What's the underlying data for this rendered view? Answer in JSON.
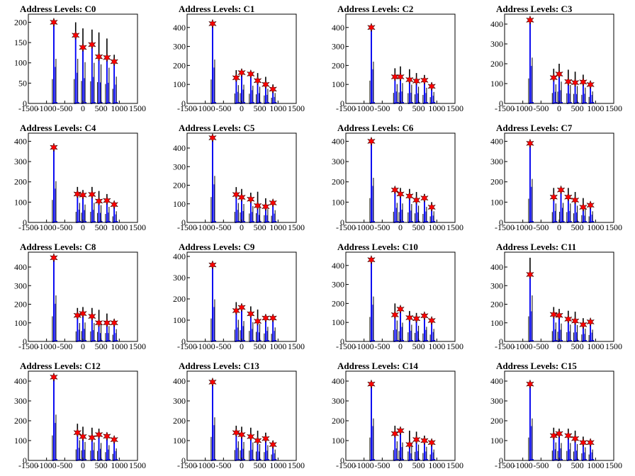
{
  "colors": {
    "hist_dark": "#000000",
    "hist_blue": "#0000ff",
    "peak_marker": "#ff0000",
    "frame": "#000000"
  },
  "chart_data": [
    {
      "title": "Address Levels: C0",
      "type": "bar",
      "xlim": [
        -1500,
        1500
      ],
      "xticks": [
        -1500,
        -1000,
        -500,
        0,
        500,
        1000,
        1500
      ],
      "ylim": [
        0,
        220
      ],
      "yticks": [
        0,
        50,
        100,
        150,
        200
      ],
      "peaks": {
        "x": [
          -800,
          -200,
          0,
          250,
          440,
          660,
          860
        ],
        "y": [
          200,
          168,
          138,
          145,
          115,
          113,
          103
        ]
      },
      "bar_tops": {
        "x": [
          -800,
          -200,
          0,
          250,
          440,
          660,
          860
        ],
        "dark": [
          200,
          200,
          185,
          182,
          175,
          160,
          120
        ],
        "blue": [
          200,
          168,
          138,
          145,
          115,
          113,
          103
        ]
      }
    },
    {
      "title": "Address Levels: C1",
      "type": "bar",
      "xlim": [
        -1500,
        1500
      ],
      "xticks": [
        -1500,
        -1000,
        -500,
        0,
        500,
        1000,
        1500
      ],
      "ylim": [
        0,
        470
      ],
      "yticks": [
        0,
        100,
        200,
        300,
        400
      ],
      "peaks": {
        "x": [
          -800,
          -150,
          0,
          250,
          440,
          660,
          860
        ],
        "y": [
          420,
          135,
          162,
          155,
          120,
          100,
          75
        ]
      },
      "bar_tops": {
        "x": [
          -800,
          -150,
          0,
          250,
          440,
          660,
          860
        ],
        "dark": [
          420,
          175,
          180,
          170,
          160,
          140,
          100
        ],
        "blue": [
          420,
          135,
          162,
          155,
          120,
          100,
          75
        ]
      }
    },
    {
      "title": "Address Levels: C2",
      "type": "bar",
      "xlim": [
        -1500,
        1500
      ],
      "xticks": [
        -1500,
        -1000,
        -500,
        0,
        500,
        1000,
        1500
      ],
      "ylim": [
        0,
        470
      ],
      "yticks": [
        0,
        100,
        200,
        300,
        400
      ],
      "peaks": {
        "x": [
          -800,
          -150,
          0,
          250,
          440,
          660,
          860
        ],
        "y": [
          400,
          140,
          140,
          125,
          118,
          122,
          90
        ]
      },
      "bar_tops": {
        "x": [
          -800,
          -150,
          0,
          250,
          440,
          660,
          860
        ],
        "dark": [
          400,
          185,
          195,
          180,
          160,
          150,
          110
        ],
        "blue": [
          400,
          140,
          140,
          125,
          118,
          122,
          90
        ]
      }
    },
    {
      "title": "Address Levels: C3",
      "type": "bar",
      "xlim": [
        -1500,
        1500
      ],
      "xticks": [
        -1500,
        -1000,
        -500,
        0,
        500,
        1000,
        1500
      ],
      "ylim": [
        0,
        450
      ],
      "yticks": [
        0,
        100,
        200,
        300,
        400
      ],
      "peaks": {
        "x": [
          -800,
          -150,
          0,
          250,
          440,
          660,
          860
        ],
        "y": [
          420,
          130,
          148,
          110,
          105,
          108,
          95
        ]
      },
      "bar_tops": {
        "x": [
          -800,
          -150,
          0,
          250,
          440,
          660,
          860
        ],
        "dark": [
          420,
          175,
          200,
          170,
          160,
          145,
          110
        ],
        "blue": [
          420,
          130,
          148,
          110,
          105,
          108,
          95
        ]
      }
    },
    {
      "title": "Address Levels: C4",
      "type": "bar",
      "xlim": [
        -1500,
        1500
      ],
      "xticks": [
        -1500,
        -1000,
        -500,
        0,
        500,
        1000,
        1500
      ],
      "ylim": [
        0,
        440
      ],
      "yticks": [
        0,
        100,
        200,
        300,
        400
      ],
      "peaks": {
        "x": [
          -800,
          -150,
          0,
          250,
          440,
          660,
          860
        ],
        "y": [
          370,
          140,
          135,
          138,
          105,
          108,
          88
        ]
      },
      "bar_tops": {
        "x": [
          -800,
          -150,
          0,
          250,
          440,
          660,
          860
        ],
        "dark": [
          370,
          175,
          160,
          175,
          155,
          140,
          100
        ],
        "blue": [
          370,
          140,
          135,
          138,
          105,
          108,
          88
        ]
      }
    },
    {
      "title": "Address Levels: C5",
      "type": "bar",
      "xlim": [
        -1500,
        1500
      ],
      "xticks": [
        -1500,
        -1000,
        -500,
        0,
        500,
        1000,
        1500
      ],
      "ylim": [
        0,
        480
      ],
      "yticks": [
        0,
        100,
        200,
        300,
        400
      ],
      "peaks": {
        "x": [
          -800,
          -150,
          0,
          250,
          440,
          660,
          860
        ],
        "y": [
          455,
          150,
          135,
          125,
          90,
          85,
          105
        ]
      },
      "bar_tops": {
        "x": [
          -800,
          -150,
          0,
          250,
          440,
          660,
          860
        ],
        "dark": [
          455,
          190,
          180,
          160,
          165,
          130,
          120
        ],
        "blue": [
          455,
          150,
          135,
          125,
          90,
          85,
          105
        ]
      }
    },
    {
      "title": "Address Levels: C6",
      "type": "bar",
      "xlim": [
        -1500,
        1500
      ],
      "xticks": [
        -1500,
        -1000,
        -500,
        0,
        500,
        1000,
        1500
      ],
      "ylim": [
        0,
        440
      ],
      "yticks": [
        0,
        100,
        200,
        300,
        400
      ],
      "peaks": {
        "x": [
          -800,
          -150,
          0,
          250,
          440,
          660,
          860
        ],
        "y": [
          400,
          160,
          140,
          130,
          110,
          120,
          75
        ]
      },
      "bar_tops": {
        "x": [
          -800,
          -150,
          0,
          250,
          440,
          660,
          860
        ],
        "dark": [
          400,
          175,
          170,
          165,
          150,
          140,
          100
        ],
        "blue": [
          400,
          160,
          140,
          130,
          110,
          120,
          75
        ]
      }
    },
    {
      "title": "Address Levels: C7",
      "type": "bar",
      "xlim": [
        -1500,
        1500
      ],
      "xticks": [
        -1500,
        -1000,
        -500,
        0,
        500,
        1000,
        1500
      ],
      "ylim": [
        0,
        440
      ],
      "yticks": [
        0,
        100,
        200,
        300,
        400
      ],
      "peaks": {
        "x": [
          -800,
          -150,
          50,
          250,
          440,
          660,
          860
        ],
        "y": [
          390,
          125,
          160,
          125,
          110,
          75,
          85
        ]
      },
      "bar_tops": {
        "x": [
          -800,
          -150,
          50,
          250,
          440,
          660,
          860
        ],
        "dark": [
          390,
          170,
          175,
          170,
          150,
          120,
          100
        ],
        "blue": [
          390,
          125,
          160,
          125,
          110,
          75,
          85
        ]
      }
    },
    {
      "title": "Address Levels: C8",
      "type": "bar",
      "xlim": [
        -1500,
        1500
      ],
      "xticks": [
        -1500,
        -1000,
        -500,
        0,
        500,
        1000,
        1500
      ],
      "ylim": [
        0,
        480
      ],
      "yticks": [
        0,
        100,
        200,
        300,
        400
      ],
      "peaks": {
        "x": [
          -800,
          -150,
          0,
          250,
          440,
          660,
          860
        ],
        "y": [
          450,
          140,
          150,
          135,
          100,
          100,
          100
        ]
      },
      "bar_tops": {
        "x": [
          -800,
          -150,
          0,
          250,
          440,
          660,
          860
        ],
        "dark": [
          450,
          180,
          185,
          180,
          170,
          150,
          120
        ],
        "blue": [
          450,
          140,
          150,
          135,
          100,
          100,
          100
        ]
      }
    },
    {
      "title": "Address Levels: C9",
      "type": "bar",
      "xlim": [
        -1500,
        1500
      ],
      "xticks": [
        -1500,
        -1000,
        -500,
        0,
        500,
        1000,
        1500
      ],
      "ylim": [
        0,
        420
      ],
      "yticks": [
        0,
        100,
        200,
        300,
        400
      ],
      "peaks": {
        "x": [
          -800,
          -150,
          0,
          250,
          440,
          660,
          860
        ],
        "y": [
          360,
          145,
          160,
          130,
          95,
          110,
          110
        ]
      },
      "bar_tops": {
        "x": [
          -800,
          -150,
          0,
          250,
          440,
          660,
          860
        ],
        "dark": [
          360,
          185,
          175,
          165,
          150,
          125,
          120
        ],
        "blue": [
          360,
          145,
          160,
          130,
          95,
          110,
          110
        ]
      }
    },
    {
      "title": "Address Levels: C10",
      "type": "bar",
      "xlim": [
        -1500,
        1500
      ],
      "xticks": [
        -1500,
        -1000,
        -500,
        0,
        500,
        1000,
        1500
      ],
      "ylim": [
        0,
        470
      ],
      "yticks": [
        0,
        100,
        200,
        300,
        400
      ],
      "peaks": {
        "x": [
          -800,
          -150,
          0,
          250,
          440,
          660,
          860
        ],
        "y": [
          430,
          140,
          170,
          125,
          120,
          135,
          110
        ]
      },
      "bar_tops": {
        "x": [
          -800,
          -150,
          0,
          250,
          440,
          660,
          860
        ],
        "dark": [
          430,
          200,
          180,
          160,
          150,
          140,
          120
        ],
        "blue": [
          430,
          140,
          170,
          125,
          120,
          135,
          110
        ]
      }
    },
    {
      "title": "Address Levels: C11",
      "type": "bar",
      "xlim": [
        -1500,
        1500
      ],
      "xticks": [
        -1500,
        -1000,
        -500,
        0,
        500,
        1000,
        1500
      ],
      "ylim": [
        0,
        480
      ],
      "yticks": [
        0,
        100,
        200,
        300,
        400
      ],
      "peaks": {
        "x": [
          -800,
          -150,
          0,
          250,
          440,
          660,
          860
        ],
        "y": [
          360,
          145,
          140,
          120,
          110,
          90,
          105
        ]
      },
      "bar_tops": {
        "x": [
          -800,
          -150,
          0,
          250,
          440,
          660,
          860
        ],
        "dark": [
          450,
          185,
          175,
          165,
          160,
          125,
          115
        ],
        "blue": [
          360,
          145,
          140,
          120,
          110,
          90,
          105
        ]
      }
    },
    {
      "title": "Address Levels: C12",
      "type": "bar",
      "xlim": [
        -1500,
        1500
      ],
      "xticks": [
        -1500,
        -1000,
        -500,
        0,
        500,
        1000,
        1500
      ],
      "ylim": [
        0,
        450
      ],
      "yticks": [
        0,
        100,
        200,
        300,
        400
      ],
      "peaks": {
        "x": [
          -800,
          -150,
          0,
          250,
          440,
          660,
          860
        ],
        "y": [
          420,
          140,
          120,
          115,
          130,
          122,
          105
        ]
      },
      "bar_tops": {
        "x": [
          -800,
          -150,
          0,
          250,
          440,
          660,
          860
        ],
        "dark": [
          420,
          185,
          170,
          165,
          160,
          140,
          110
        ],
        "blue": [
          420,
          140,
          120,
          115,
          130,
          122,
          105
        ]
      }
    },
    {
      "title": "Address Levels: C13",
      "type": "bar",
      "xlim": [
        -1500,
        1500
      ],
      "xticks": [
        -1500,
        -1000,
        -500,
        0,
        500,
        1000,
        1500
      ],
      "ylim": [
        0,
        450
      ],
      "yticks": [
        0,
        100,
        200,
        300,
        400
      ],
      "peaks": {
        "x": [
          -800,
          -150,
          0,
          250,
          440,
          660,
          860
        ],
        "y": [
          395,
          140,
          130,
          120,
          100,
          110,
          80
        ]
      },
      "bar_tops": {
        "x": [
          -800,
          -150,
          0,
          250,
          440,
          660,
          860
        ],
        "dark": [
          395,
          175,
          170,
          165,
          150,
          140,
          100
        ],
        "blue": [
          395,
          140,
          130,
          120,
          100,
          110,
          80
        ]
      }
    },
    {
      "title": "Address Levels: C14",
      "type": "bar",
      "xlim": [
        -1500,
        1500
      ],
      "xticks": [
        -1500,
        -1000,
        -500,
        0,
        500,
        1000,
        1500
      ],
      "ylim": [
        0,
        450
      ],
      "yticks": [
        0,
        100,
        200,
        300,
        400
      ],
      "peaks": {
        "x": [
          -800,
          -150,
          0,
          250,
          440,
          660,
          860
        ],
        "y": [
          385,
          135,
          150,
          80,
          105,
          100,
          90
        ]
      },
      "bar_tops": {
        "x": [
          -800,
          -150,
          0,
          250,
          440,
          660,
          860
        ],
        "dark": [
          385,
          175,
          165,
          150,
          145,
          125,
          100
        ],
        "blue": [
          385,
          135,
          150,
          80,
          105,
          100,
          90
        ]
      }
    },
    {
      "title": "Address Levels: C15",
      "type": "bar",
      "xlim": [
        -1500,
        1500
      ],
      "xticks": [
        -1500,
        -1000,
        -500,
        0,
        500,
        1000,
        1500
      ],
      "ylim": [
        0,
        450
      ],
      "yticks": [
        0,
        100,
        200,
        300,
        400
      ],
      "peaks": {
        "x": [
          -800,
          -150,
          0,
          250,
          440,
          660,
          860
        ],
        "y": [
          385,
          125,
          135,
          125,
          110,
          90,
          90
        ]
      },
      "bar_tops": {
        "x": [
          -800,
          -150,
          0,
          250,
          440,
          660,
          860
        ],
        "dark": [
          385,
          165,
          160,
          160,
          150,
          120,
          100
        ],
        "blue": [
          385,
          125,
          135,
          125,
          110,
          90,
          90
        ]
      }
    }
  ]
}
